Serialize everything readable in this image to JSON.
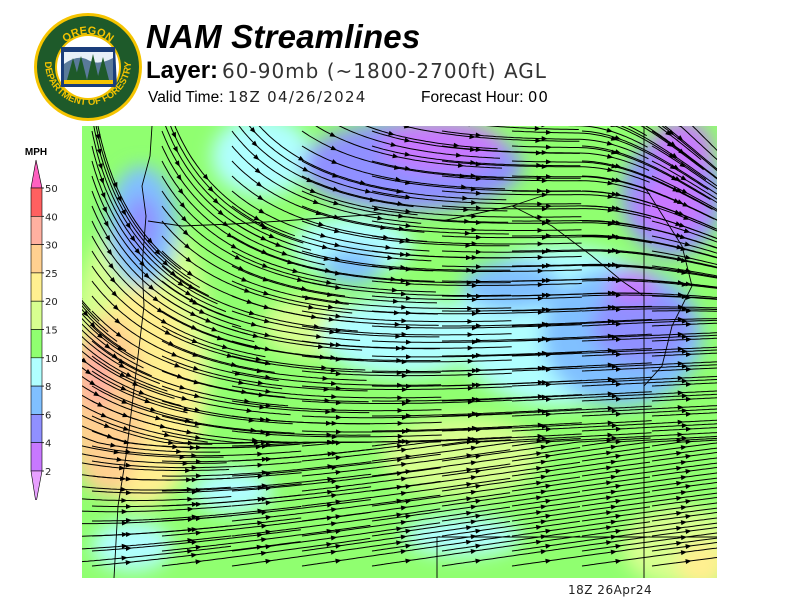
{
  "header": {
    "title": "NAM Streamlines",
    "layer_label": "Layer:",
    "layer_value": "60-90mb (~1800-2700ft) AGL",
    "valid_label": "Valid Time:",
    "valid_value": "18Z 04/26/2024",
    "forecast_label": "Forecast Hour:",
    "forecast_value": "00"
  },
  "logo": {
    "top_text": "OREGON",
    "ring_text": "DEPARTMENT OF FORESTRY"
  },
  "legend": {
    "unit": "MPH",
    "labels": [
      "50",
      "40",
      "30",
      "25",
      "20",
      "15",
      "10",
      "8",
      "6",
      "4",
      "2"
    ],
    "colors": [
      "#ff6060",
      "#ffb0a0",
      "#ffd090",
      "#fff090",
      "#d8ff90",
      "#90ff70",
      "#b0ffff",
      "#80c0ff",
      "#9090ff",
      "#c878ff"
    ],
    "top_arrow_color": "#ff60c0",
    "bottom_arrow_color": "#e8a0ff"
  },
  "footer": {
    "timestamp": "18Z 26Apr24"
  }
}
